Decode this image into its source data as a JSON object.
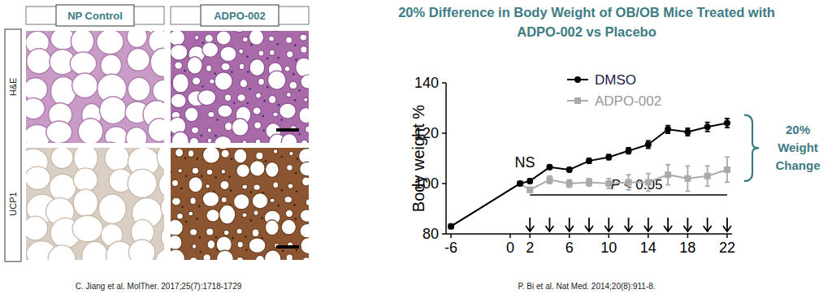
{
  "histology": {
    "columns": [
      "NP Control",
      "ADPO-002"
    ],
    "rows": [
      "H&E",
      "UCP1"
    ]
  },
  "citations": [
    "C. Jiang et al. MolTher. 2017;25(7):1718-1729",
    "P. Bi et al. Nat Med. 2014;20(8):911-8."
  ],
  "chart_data": {
    "type": "line",
    "title": "20% Difference in Body Weight of OB/OB Mice Treated with ADPO-002 vs Placebo",
    "y_label": "Body weight %",
    "x": [
      -6,
      1,
      2,
      4,
      6,
      8,
      10,
      12,
      14,
      16,
      18,
      20,
      22
    ],
    "xlim": [
      -6.5,
      22.5
    ],
    "xticks": [
      -6,
      0,
      2,
      6,
      10,
      14,
      18,
      22
    ],
    "ylim": [
      80,
      140
    ],
    "yticks": [
      80,
      100,
      120,
      140
    ],
    "legend": "top",
    "series": [
      {
        "name": "DMSO",
        "color": "#000000",
        "marker": "circle",
        "values": [
          83,
          100,
          101,
          106.5,
          105.5,
          109,
          110.5,
          113,
          115.5,
          121.5,
          120.5,
          122.5,
          124
        ],
        "errors": [
          0,
          0,
          0.8,
          0.8,
          0.8,
          1,
          1,
          1.2,
          1.5,
          1.5,
          1.5,
          1.8,
          1.8
        ]
      },
      {
        "name": "ADPO-002",
        "color": "#aaaaaa",
        "marker": "square",
        "values": [
          83,
          100,
          97.5,
          101.5,
          100,
          100.5,
          100,
          100.5,
          100.5,
          103.5,
          102,
          103,
          105.5
        ],
        "errors": [
          0,
          0,
          1,
          1.5,
          1.5,
          1.5,
          2,
          3,
          3.5,
          4,
          5,
          4,
          5
        ]
      }
    ],
    "annotations": {
      "ns": "NS",
      "p_value": "P < 0.05",
      "weight_change": [
        "20%",
        "Weight",
        "Change"
      ]
    },
    "significance": {
      "x": [
        2,
        22
      ],
      "y": 95.5
    },
    "injections": [
      2,
      4,
      6,
      8,
      10,
      12,
      14,
      16,
      18,
      20,
      22
    ]
  }
}
